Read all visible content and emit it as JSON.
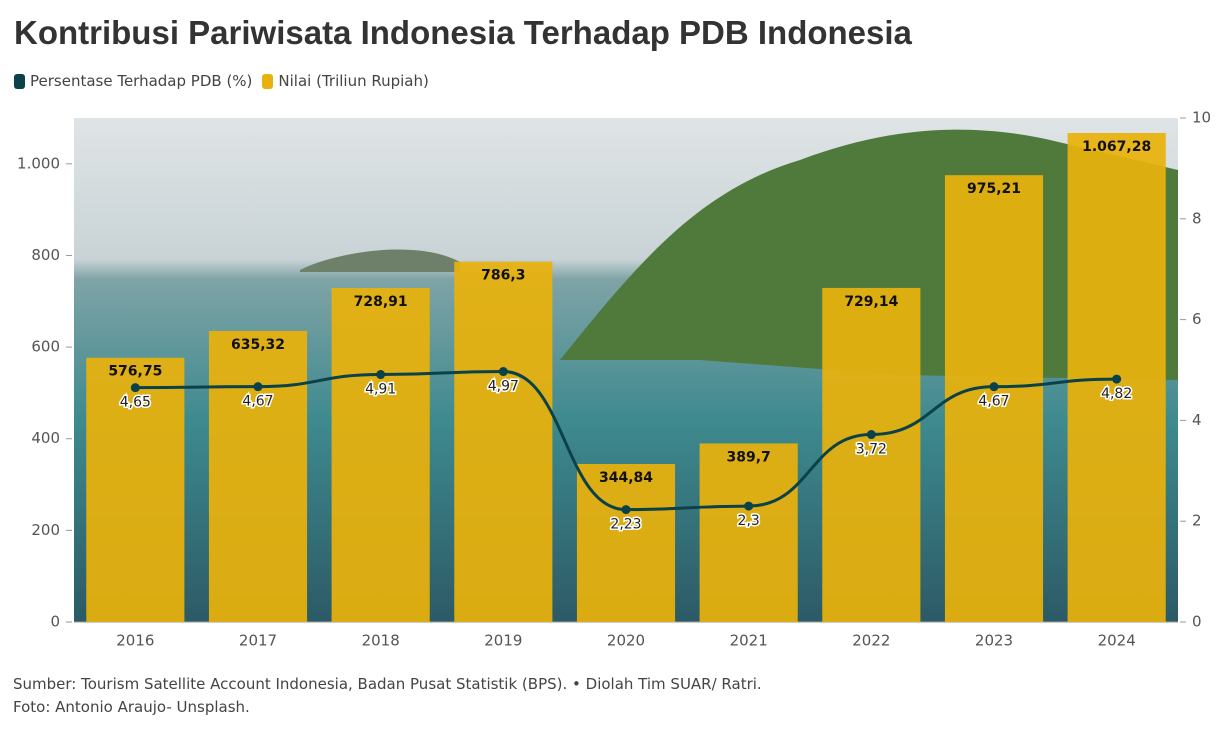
{
  "chart_data": {
    "type": "bar",
    "title": "Kontribusi Pariwisata Indonesia Terhadap PDB Indonesia",
    "categories": [
      "2016",
      "2017",
      "2018",
      "2019",
      "2020",
      "2021",
      "2022",
      "2023",
      "2024"
    ],
    "series": [
      {
        "name": "Persentase Terhadap PDB (%)",
        "type": "line",
        "axis": "y2",
        "color": "#0b4148",
        "values": [
          4.65,
          4.67,
          4.91,
          4.97,
          2.23,
          2.3,
          3.72,
          4.67,
          4.82
        ],
        "value_labels": [
          "4,65",
          "4,67",
          "4,91",
          "4,97",
          "2,23",
          "2,3",
          "3,72",
          "4,67",
          "4,82"
        ]
      },
      {
        "name": "Nilai (Triliun Rupiah)",
        "type": "bar",
        "color": "#e8b20c",
        "values": [
          576.75,
          635.32,
          728.91,
          786.3,
          344.84,
          389.7,
          729.14,
          975.21,
          1067.28
        ],
        "value_labels": [
          "576,75",
          "635,32",
          "728,91",
          "786,3",
          "344,84",
          "389,7",
          "729,14",
          "975,21",
          "1.067,28"
        ]
      }
    ],
    "ylim": [
      0,
      1100
    ],
    "yticks": [
      0,
      200,
      400,
      600,
      800,
      {
        "value": 1000,
        "label": "1.000"
      }
    ],
    "y2lim": [
      0,
      10
    ],
    "y2ticks": [
      0,
      2,
      4,
      6,
      8,
      10
    ],
    "grid": false,
    "notes": [
      "Sumber: Tourism Satellite Account Indonesia, Badan Pusat Statistik (BPS). • Diolah Tim SUAR/ Ratri.",
      "Foto: Antonio Araujo- Unsplash."
    ]
  }
}
